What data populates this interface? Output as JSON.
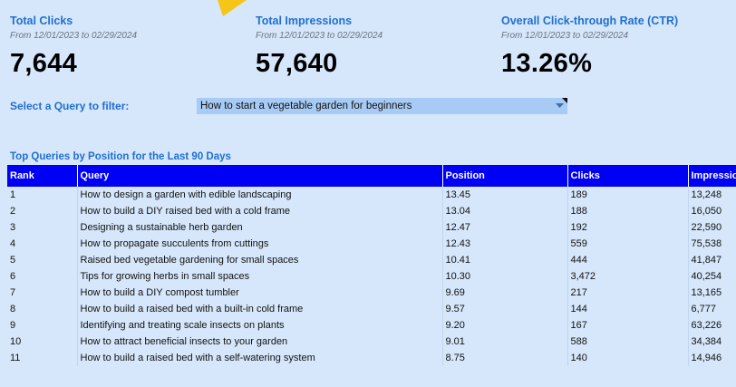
{
  "metrics": [
    {
      "title": "Total Clicks",
      "subtitle": "From 12/01/2023 to 02/29/2024",
      "value": "7,644"
    },
    {
      "title": "Total Impressions",
      "subtitle": "From 12/01/2023 to 02/29/2024",
      "value": "57,640"
    },
    {
      "title": "Overall Click-through Rate (CTR)",
      "subtitle": "From 12/01/2023 to 02/29/2024",
      "value": "13.26%"
    }
  ],
  "filter": {
    "label": "Select a Query to filter:",
    "selected": "How to start a vegetable garden for beginners"
  },
  "table": {
    "title": "Top Queries by Position for the Last 90 Days",
    "columns": [
      "Rank",
      "Query",
      "Position",
      "Clicks",
      "Impressions"
    ],
    "rows": [
      [
        "1",
        "How to design a garden with edible landscaping",
        "13.45",
        "189",
        "13,248"
      ],
      [
        "2",
        "How to build a DIY raised bed with a cold frame",
        "13.04",
        "188",
        "16,050"
      ],
      [
        "3",
        "Designing a sustainable herb garden",
        "12.47",
        "192",
        "22,590"
      ],
      [
        "4",
        "How to propagate succulents from cuttings",
        "12.43",
        "559",
        "75,538"
      ],
      [
        "5",
        "Raised bed vegetable gardening for small spaces",
        "10.41",
        "444",
        "41,847"
      ],
      [
        "6",
        "Tips for growing herbs in small spaces",
        "10.30",
        "3,472",
        "40,254"
      ],
      [
        "7",
        "How to build a DIY compost tumbler",
        "9.69",
        "217",
        "13,165"
      ],
      [
        "8",
        "How to build a raised bed with a built-in cold frame",
        "9.57",
        "144",
        "6,777"
      ],
      [
        "9",
        "Identifying and treating scale insects on plants",
        "9.20",
        "167",
        "63,226"
      ],
      [
        "10",
        "How to attract beneficial insects to your garden",
        "9.01",
        "588",
        "34,384"
      ],
      [
        "11",
        "How to build a raised bed with a self-watering system",
        "8.75",
        "140",
        "14,946"
      ]
    ]
  }
}
